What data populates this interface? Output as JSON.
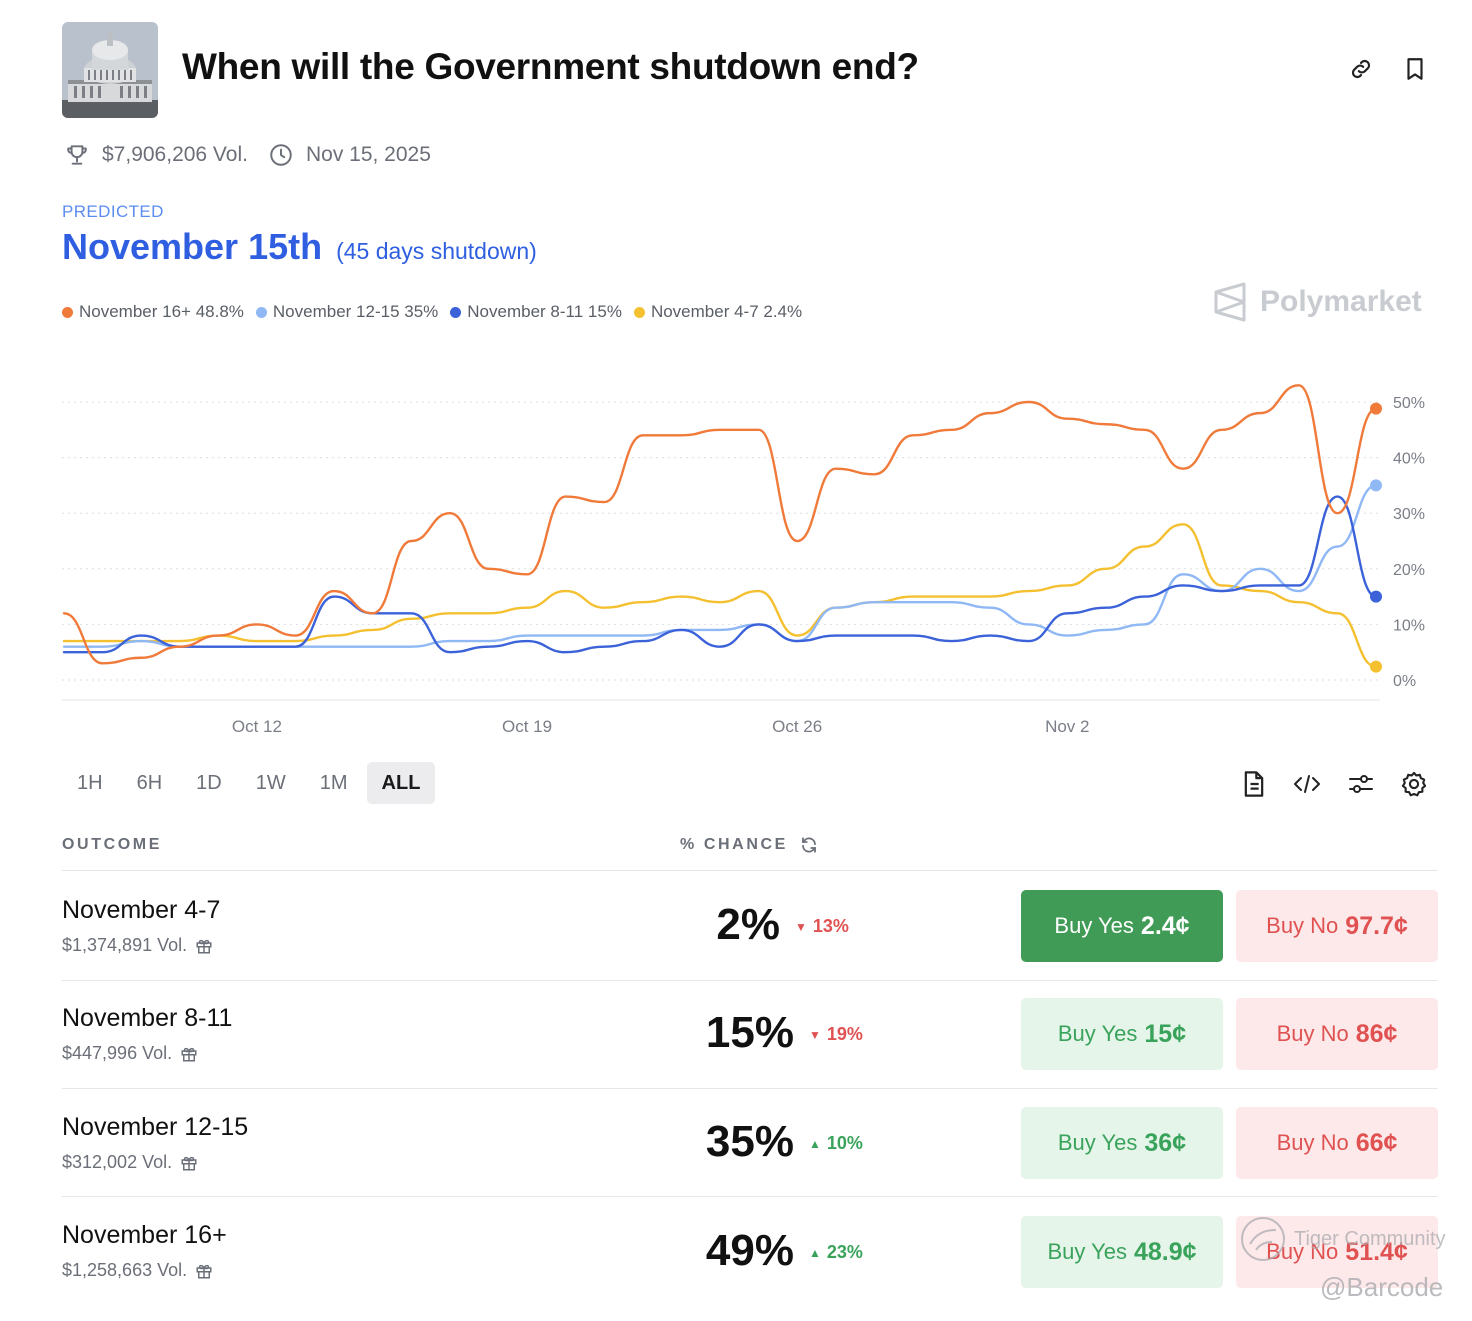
{
  "header": {
    "title": "When will the Government shutdown end?",
    "volume": "$7,906,206 Vol.",
    "date": "Nov 15, 2025"
  },
  "prediction": {
    "label": "PREDICTED",
    "value": "November 15th",
    "detail": "(45 days shutdown)"
  },
  "legend": [
    {
      "label": "November 16+ 48.8%",
      "color": "#f07a3a"
    },
    {
      "label": "November 12-15 35%",
      "color": "#8fb8f5"
    },
    {
      "label": "November 8-11 15%",
      "color": "#3b62d9"
    },
    {
      "label": "November 4-7 2.4%",
      "color": "#f4c030"
    }
  ],
  "brand": "Polymarket",
  "chart_data": {
    "type": "line",
    "xlabel": "",
    "ylabel": "",
    "x_ticks": [
      "Oct 12",
      "Oct 19",
      "Oct 26",
      "Nov 2"
    ],
    "y_ticks": [
      "50%",
      "40%",
      "30%",
      "20%",
      "10%",
      "0%"
    ],
    "ylim": [
      0,
      50
    ],
    "grid": true,
    "x_index": [
      0,
      1,
      2,
      3,
      4,
      5,
      6,
      7,
      8,
      9,
      10,
      11,
      12,
      13,
      14,
      15,
      16,
      17,
      18,
      19,
      20,
      21,
      22,
      23,
      24,
      25,
      26,
      27,
      28,
      29,
      30,
      31,
      32,
      33,
      34
    ],
    "x_tick_index": [
      5,
      12,
      19,
      26
    ],
    "series": [
      {
        "name": "November 16+",
        "color": "#f07a3a",
        "values": [
          12,
          3,
          4,
          6,
          8,
          10,
          8,
          16,
          12,
          25,
          30,
          20,
          19,
          33,
          32,
          44,
          44,
          45,
          45,
          25,
          38,
          37,
          44,
          45,
          48,
          50,
          47,
          46,
          45,
          38,
          45,
          48,
          53,
          30,
          48.8
        ]
      },
      {
        "name": "November 12-15",
        "color": "#8fb8f5",
        "values": [
          6,
          6,
          7,
          6,
          6,
          6,
          6,
          6,
          6,
          6,
          7,
          7,
          8,
          8,
          8,
          8,
          9,
          9,
          10,
          7,
          13,
          14,
          14,
          14,
          13,
          10,
          8,
          9,
          10,
          19,
          16,
          20,
          16,
          24,
          35
        ]
      },
      {
        "name": "November 8-11",
        "color": "#3b62d9",
        "values": [
          5,
          5,
          8,
          6,
          6,
          6,
          6,
          15,
          12,
          12,
          5,
          6,
          7,
          5,
          6,
          7,
          9,
          6,
          10,
          7,
          8,
          8,
          8,
          7,
          8,
          7,
          12,
          13,
          15,
          17,
          16,
          17,
          17,
          33,
          15
        ]
      },
      {
        "name": "November 4-7",
        "color": "#f4c030",
        "values": [
          7,
          7,
          7,
          7,
          8,
          7,
          7,
          8,
          9,
          11,
          12,
          12,
          13,
          16,
          13,
          14,
          15,
          14,
          16,
          8,
          13,
          14,
          15,
          15,
          15,
          16,
          17,
          20,
          24,
          28,
          17,
          16,
          14,
          12,
          2.4
        ]
      }
    ]
  },
  "ranges": [
    "1H",
    "6H",
    "1D",
    "1W",
    "1M",
    "ALL"
  ],
  "active_range": "ALL",
  "table": {
    "col_outcome": "OUTCOME",
    "col_chance": "% CHANCE",
    "rows": [
      {
        "name": "November 4-7",
        "vol": "$1,374,891 Vol.",
        "pct": "2%",
        "change": "13%",
        "dir": "down",
        "yes_label": "Buy Yes",
        "yes_price": "2.4¢",
        "no_label": "Buy No",
        "no_price": "97.7¢"
      },
      {
        "name": "November 8-11",
        "vol": "$447,996 Vol.",
        "pct": "15%",
        "change": "19%",
        "dir": "down",
        "yes_label": "Buy Yes",
        "yes_price": "15¢",
        "no_label": "Buy No",
        "no_price": "86¢"
      },
      {
        "name": "November 12-15",
        "vol": "$312,002 Vol.",
        "pct": "35%",
        "change": "10%",
        "dir": "up",
        "yes_label": "Buy Yes",
        "yes_price": "36¢",
        "no_label": "Buy No",
        "no_price": "66¢"
      },
      {
        "name": "November 16+",
        "vol": "$1,258,663 Vol.",
        "pct": "49%",
        "change": "23%",
        "dir": "up",
        "yes_label": "Buy Yes",
        "yes_price": "48.9¢",
        "no_label": "Buy No",
        "no_price": "51.4¢"
      }
    ]
  },
  "watermark": {
    "community": "Tiger Community",
    "handle": "@Barcode"
  }
}
